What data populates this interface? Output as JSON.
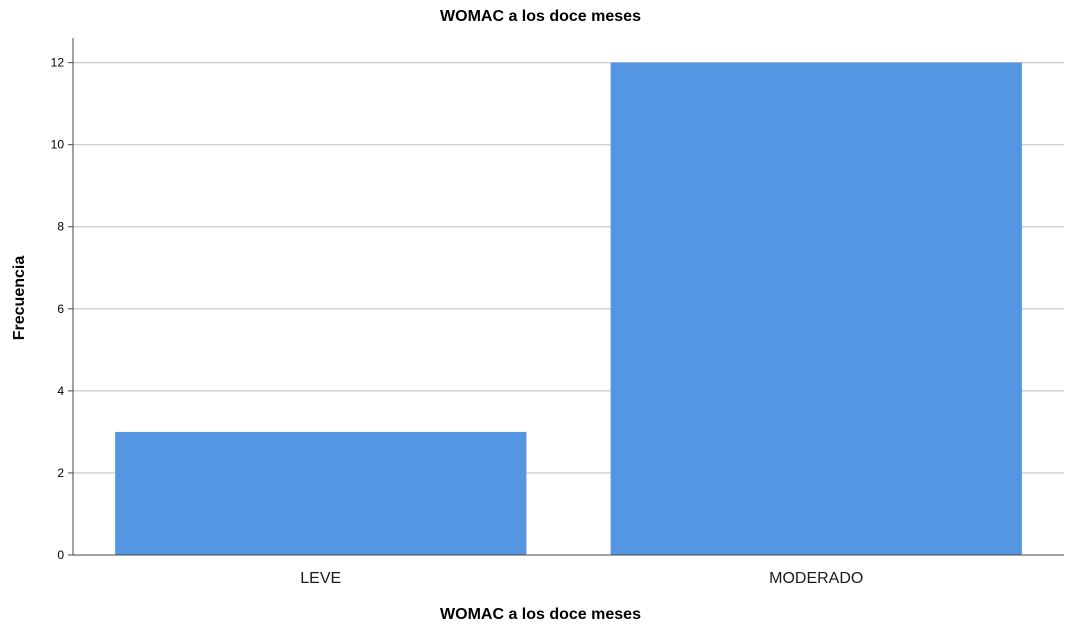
{
  "chart_data": {
    "type": "bar",
    "title": "WOMAC a los doce meses",
    "xlabel": "WOMAC a los doce meses",
    "ylabel": "Frecuencia",
    "categories": [
      "LEVE",
      "MODERADO"
    ],
    "values": [
      3,
      12
    ],
    "ylim": [
      0,
      12.6
    ],
    "yticks": [
      "0",
      "2",
      "4",
      "6",
      "8",
      "10",
      "12"
    ],
    "grid": true,
    "legend": "none",
    "bar_color": "#5596e3",
    "gridline_color": "#c8c8c8",
    "axis_color": "#444444"
  }
}
